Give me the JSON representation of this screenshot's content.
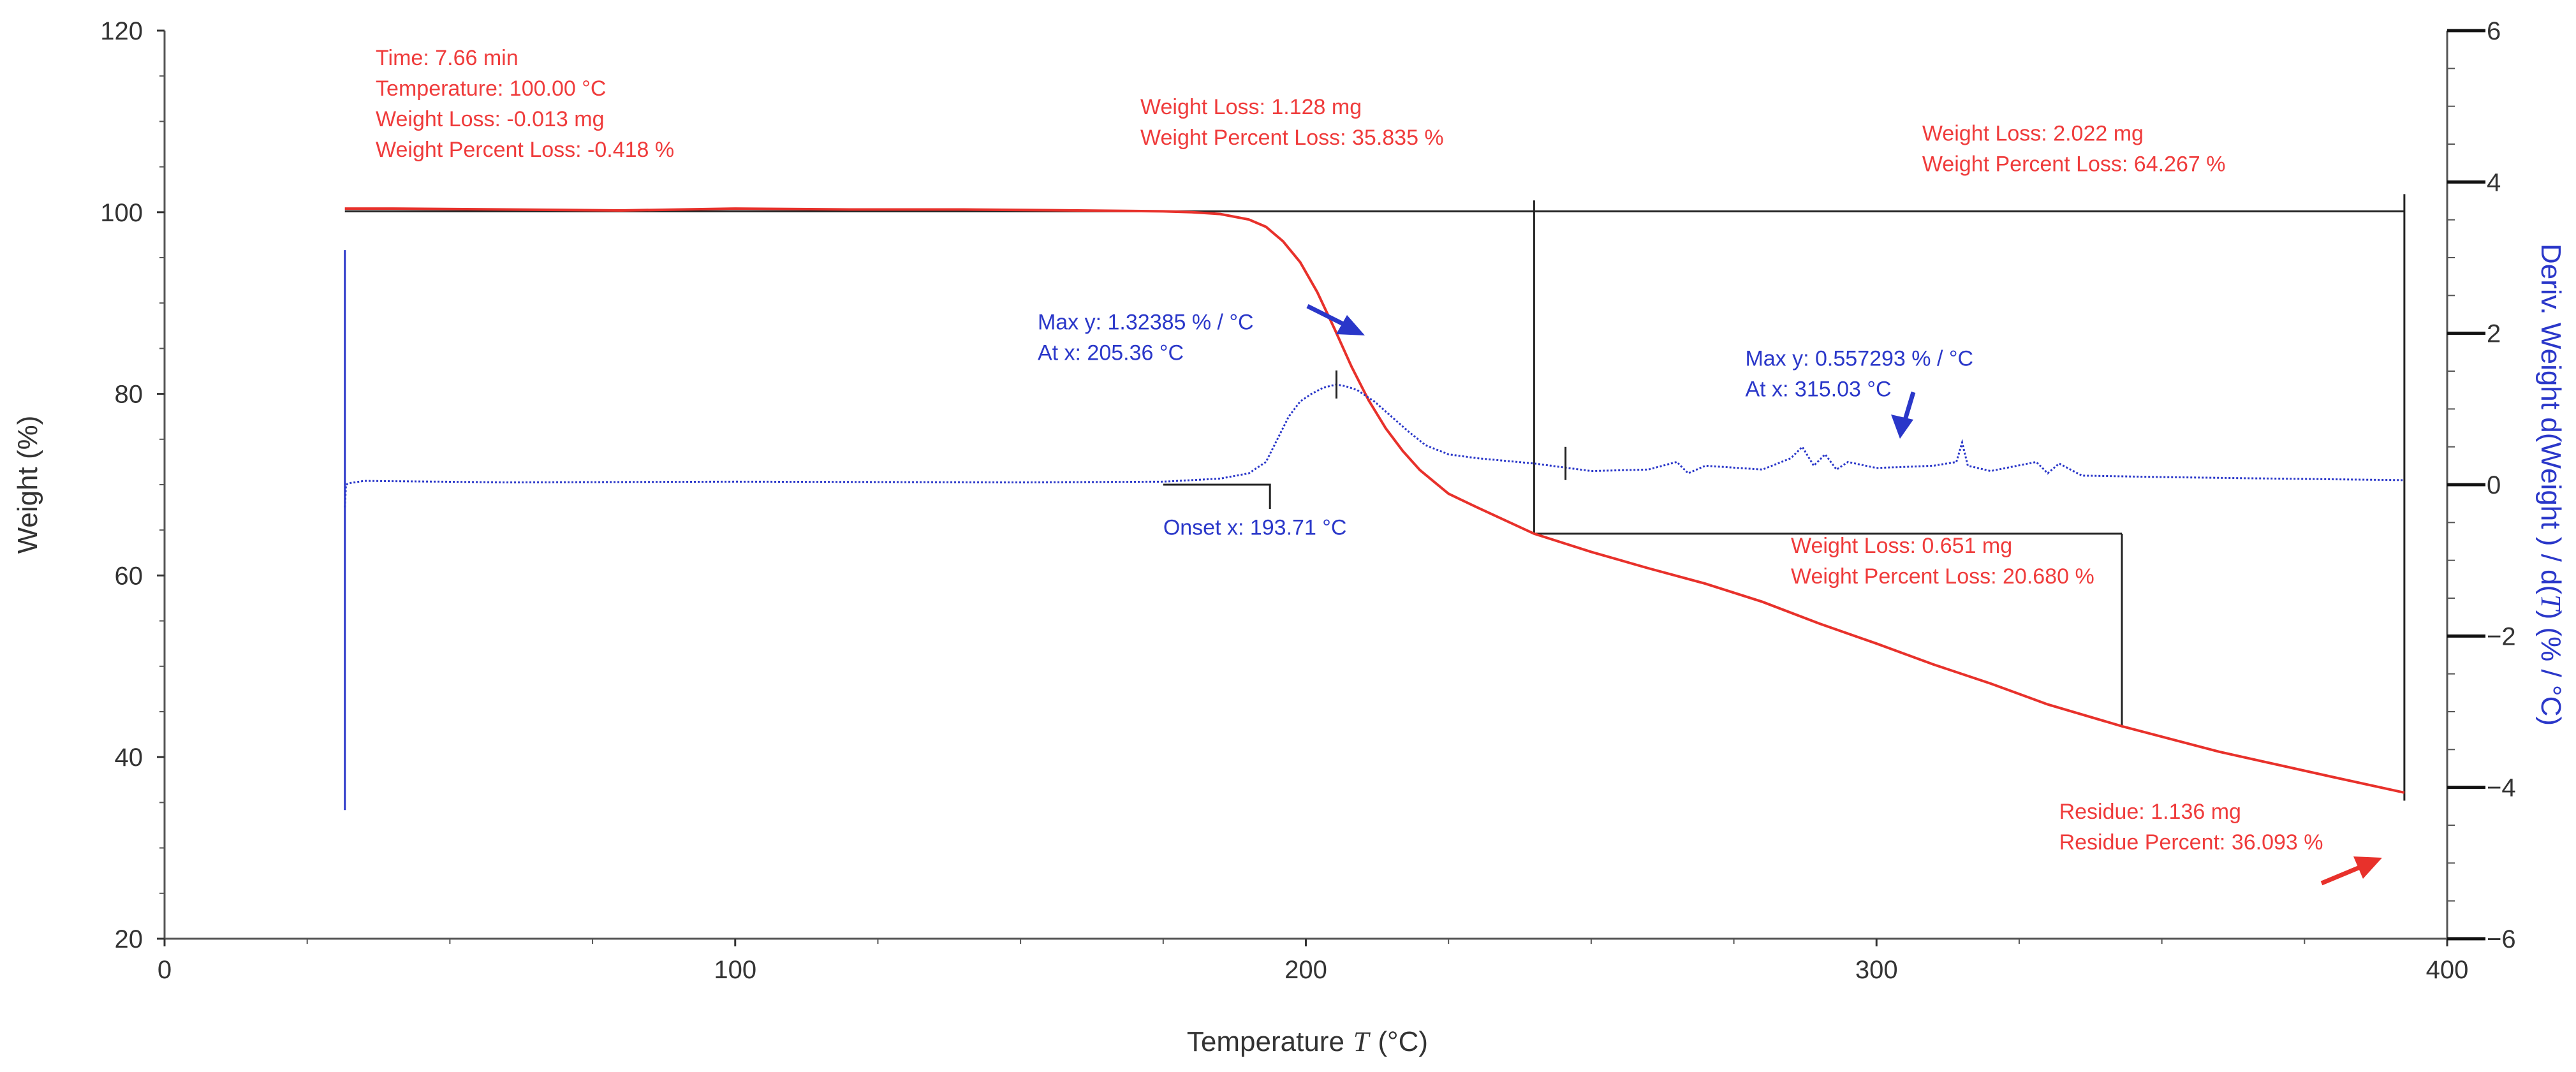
{
  "chart_data": {
    "type": "line",
    "xlabel_prefix": "Temperature",
    "xlabel_var": "T",
    "xlabel_suffix": "(°C)",
    "ylabel": "Weight  (%)",
    "y2label_part1": "Deriv. Weight d(Weight ) / d(",
    "y2label_var": "T",
    "y2label_part2": ")  (% / °C)",
    "xlim": [
      0,
      400
    ],
    "ylim": [
      20,
      120
    ],
    "y2lim": [
      -6,
      6
    ],
    "x_ticks": [
      "0",
      "100",
      "200",
      "300",
      "400"
    ],
    "y_ticks": [
      "20",
      "40",
      "60",
      "80",
      "100",
      "120"
    ],
    "y2_ticks": [
      "−6",
      "−4",
      "−2",
      "0",
      "2",
      "4",
      "6"
    ],
    "series": [
      {
        "name": "Weight",
        "axis": "left",
        "color": "#e8312b",
        "x": [
          31.6,
          40,
          60,
          80,
          100,
          120,
          140,
          160,
          175,
          180,
          185,
          190,
          193,
          196,
          199,
          202,
          205,
          208,
          211,
          214,
          217,
          220,
          225,
          230,
          240,
          250,
          260,
          270,
          280,
          290,
          300,
          310,
          320,
          330,
          343,
          360,
          380,
          392.5
        ],
        "y": [
          100.4,
          100.4,
          100.3,
          100.2,
          100.4,
          100.3,
          100.3,
          100.2,
          100.1,
          100.0,
          99.8,
          99.2,
          98.4,
          96.8,
          94.5,
          91.2,
          87.2,
          83.0,
          79.3,
          76.2,
          73.7,
          71.6,
          69.0,
          67.5,
          64.6,
          62.6,
          60.8,
          59.1,
          57.1,
          54.7,
          52.5,
          50.2,
          48.1,
          45.8,
          43.4,
          40.6,
          37.8,
          36.09
        ]
      },
      {
        "name": "Deriv. Weight",
        "axis": "right",
        "color": "#2a37c9",
        "x": [
          31.6,
          31.8,
          32.4,
          35,
          60,
          100,
          150,
          175,
          185,
          190,
          193,
          195,
          197,
          199,
          201,
          203,
          205.36,
          207,
          209,
          212,
          215,
          218,
          221,
          225,
          230,
          240,
          250,
          260,
          265,
          267,
          270,
          280,
          285,
          287,
          289,
          291,
          293,
          295,
          300,
          310,
          314,
          315,
          316,
          320,
          328,
          330,
          332,
          336,
          350,
          370,
          392.5
        ],
        "y": [
          -0.3,
          0.0,
          0.02,
          0.05,
          0.03,
          0.04,
          0.03,
          0.04,
          0.08,
          0.15,
          0.3,
          0.6,
          0.9,
          1.1,
          1.2,
          1.28,
          1.32385,
          1.3,
          1.25,
          1.1,
          0.9,
          0.7,
          0.52,
          0.4,
          0.35,
          0.28,
          0.18,
          0.2,
          0.3,
          0.15,
          0.25,
          0.2,
          0.35,
          0.5,
          0.25,
          0.4,
          0.2,
          0.3,
          0.22,
          0.25,
          0.3,
          0.55729,
          0.25,
          0.18,
          0.3,
          0.15,
          0.28,
          0.12,
          0.1,
          0.08,
          0.06
        ]
      }
    ],
    "reference_lines": [
      {
        "type": "vline",
        "x": 31.6,
        "y2_range": [
          -4.3,
          3.1
        ],
        "color": "#2a37c9"
      },
      {
        "type": "hline",
        "y": 100.1,
        "x_range": [
          31.6,
          392.5
        ],
        "color": "#222222"
      },
      {
        "type": "vline",
        "x": 240,
        "y_range": [
          64.6,
          101.3
        ],
        "color": "#222222"
      },
      {
        "type": "hline",
        "y": 64.6,
        "x_range": [
          240,
          343
        ],
        "color": "#222222"
      },
      {
        "type": "vline",
        "x": 343,
        "y_range": [
          43.4,
          64.6
        ],
        "color": "#222222"
      },
      {
        "type": "vline",
        "x": 392.5,
        "y_range": [
          35.2,
          102.0
        ],
        "color": "#222222"
      },
      {
        "type": "onset",
        "x": 193.71,
        "y2": 0.0,
        "x_from": 175,
        "color": "#222222"
      }
    ],
    "annotations": [
      {
        "lines": [
          "Time: 7.66 min",
          "Temperature: 100.00 °C",
          "Weight Loss: -0.013 mg",
          "Weight Percent Loss: -0.418 %"
        ],
        "color": "red",
        "x": 37,
        "y": 116.2
      },
      {
        "lines": [
          "Weight Loss: 1.128 mg",
          "Weight Percent Loss: 35.835 %"
        ],
        "color": "red",
        "x": 171,
        "y": 110.8
      },
      {
        "lines": [
          "Weight Loss: 2.022 mg",
          "Weight Percent Loss: 64.267 %"
        ],
        "color": "red",
        "x": 308,
        "y": 107.9
      },
      {
        "lines": [
          "Max y: 1.32385 % / °C",
          "At x: 205.36 °C"
        ],
        "color": "blue",
        "x": 153,
        "y": 87.1
      },
      {
        "lines": [
          "Max y: 0.557293 % / °C",
          "At x: 315.03 °C"
        ],
        "color": "blue",
        "x": 277,
        "y": 83.1
      },
      {
        "lines": [
          "Onset x: 193.71 °C"
        ],
        "color": "blue",
        "x": 175,
        "y": 64.5
      },
      {
        "lines": [
          "Weight Loss: 0.651 mg",
          "Weight Percent Loss: 20.680 %"
        ],
        "color": "red",
        "x": 285,
        "y": 62.5
      },
      {
        "lines": [
          "Residue: 1.136 mg",
          "Residue Percent: 36.093 %"
        ],
        "color": "red",
        "x": 332,
        "y": 33.2
      }
    ]
  }
}
